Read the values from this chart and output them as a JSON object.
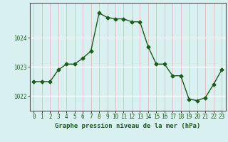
{
  "x": [
    0,
    1,
    2,
    3,
    4,
    5,
    6,
    7,
    8,
    9,
    10,
    11,
    12,
    13,
    14,
    15,
    16,
    17,
    18,
    19,
    20,
    21,
    22,
    23
  ],
  "y": [
    1022.5,
    1022.5,
    1022.5,
    1022.9,
    1023.1,
    1023.1,
    1023.3,
    1023.55,
    1024.85,
    1024.7,
    1024.65,
    1024.65,
    1024.55,
    1024.55,
    1023.7,
    1023.1,
    1023.1,
    1022.7,
    1022.7,
    1021.9,
    1021.85,
    1021.95,
    1022.4,
    1022.9
  ],
  "line_color": "#1a5c1a",
  "marker": "D",
  "marker_size": 2.5,
  "bg_color": "#d9f0f0",
  "grid_color_h": "#ffffff",
  "grid_color_v": "#e8b8b8",
  "yticks": [
    1022,
    1023,
    1024
  ],
  "ylim": [
    1021.5,
    1025.2
  ],
  "xlim": [
    -0.5,
    23.5
  ],
  "xlabel": "Graphe pression niveau de la mer (hPa)",
  "xlabel_fontsize": 6.5,
  "tick_fontsize": 5.5,
  "spine_color": "#555555"
}
